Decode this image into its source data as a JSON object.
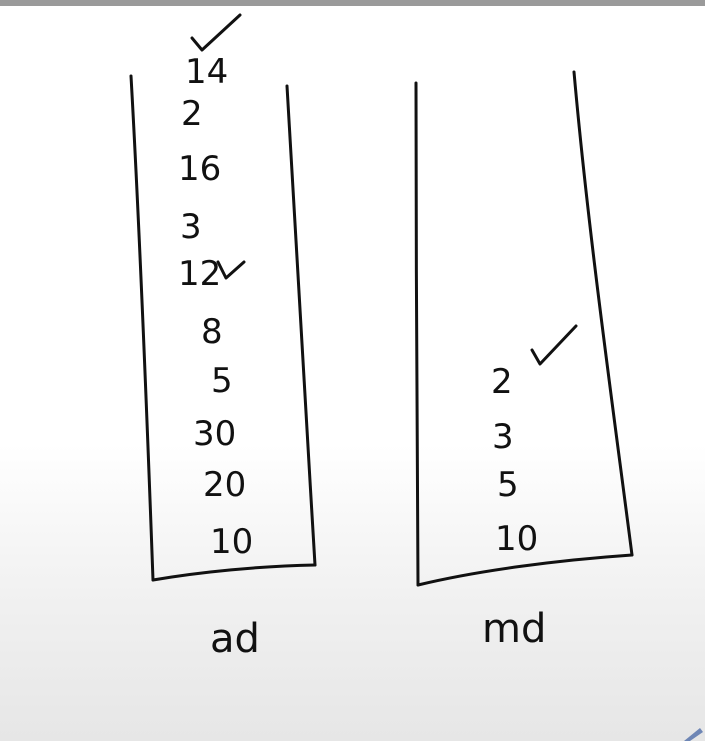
{
  "stacks": [
    {
      "label": "ad",
      "items": [
        "14",
        "2",
        "16",
        "3",
        "12",
        "8",
        "5",
        "30",
        "20",
        "10"
      ]
    },
    {
      "label": "md",
      "items": [
        "2",
        "3",
        "5",
        "10"
      ]
    }
  ]
}
